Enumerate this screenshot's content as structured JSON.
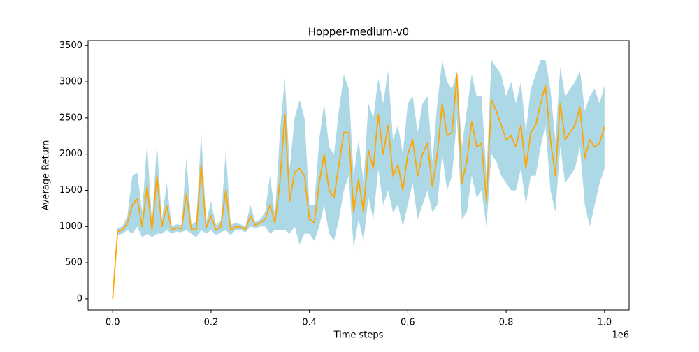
{
  "chart_data": {
    "type": "line",
    "title": "Hopper-medium-v0",
    "xlabel": "Time steps",
    "ylabel": "Average Return",
    "x_offset_text": "1e6",
    "xlim": [
      -50000,
      1050000
    ],
    "ylim": [
      -155,
      3570
    ],
    "xticks": [
      {
        "value": 0,
        "label": "0.0"
      },
      {
        "value": 200000,
        "label": "0.2"
      },
      {
        "value": 400000,
        "label": "0.4"
      },
      {
        "value": 600000,
        "label": "0.6"
      },
      {
        "value": 800000,
        "label": "0.8"
      },
      {
        "value": 1000000,
        "label": "1.0"
      }
    ],
    "yticks": [
      0,
      500,
      1000,
      1500,
      2000,
      2500,
      3000,
      3500
    ],
    "x": [
      0,
      10000,
      20000,
      30000,
      40000,
      50000,
      60000,
      70000,
      80000,
      90000,
      100000,
      110000,
      120000,
      130000,
      140000,
      150000,
      160000,
      170000,
      180000,
      190000,
      200000,
      210000,
      220000,
      230000,
      240000,
      250000,
      260000,
      270000,
      280000,
      290000,
      300000,
      310000,
      320000,
      330000,
      340000,
      350000,
      360000,
      370000,
      380000,
      390000,
      400000,
      410000,
      420000,
      430000,
      440000,
      450000,
      460000,
      470000,
      480000,
      490000,
      500000,
      510000,
      520000,
      530000,
      540000,
      550000,
      560000,
      570000,
      580000,
      590000,
      600000,
      610000,
      620000,
      630000,
      640000,
      650000,
      660000,
      670000,
      680000,
      690000,
      700000,
      710000,
      720000,
      730000,
      740000,
      750000,
      760000,
      770000,
      780000,
      790000,
      800000,
      810000,
      820000,
      830000,
      840000,
      850000,
      860000,
      870000,
      880000,
      890000,
      900000,
      910000,
      920000,
      930000,
      940000,
      950000,
      960000,
      970000,
      980000,
      990000,
      1000000
    ],
    "series": [
      {
        "color": "#ffa500",
        "band_color": "#add8e6",
        "values": [
          0,
          930,
          950,
          1050,
          1300,
          1380,
          1000,
          1550,
          950,
          1700,
          1000,
          1280,
          950,
          980,
          970,
          1450,
          960,
          960,
          1850,
          980,
          1150,
          950,
          1000,
          1500,
          950,
          1000,
          990,
          960,
          1150,
          1020,
          1050,
          1100,
          1300,
          1050,
          1600,
          2550,
          1350,
          1750,
          1800,
          1700,
          1100,
          1050,
          1600,
          2000,
          1500,
          1400,
          1850,
          2300,
          2300,
          1200,
          1650,
          1200,
          2050,
          1800,
          2550,
          2000,
          2400,
          1700,
          1850,
          1500,
          2000,
          2200,
          1700,
          2000,
          2150,
          1550,
          2000,
          2700,
          2250,
          2300,
          3100,
          1600,
          1900,
          2450,
          2100,
          2150,
          1350,
          2750,
          2600,
          2400,
          2200,
          2250,
          2100,
          2400,
          1800,
          2300,
          2400,
          2700,
          2950,
          2200,
          1700,
          2700,
          2200,
          2300,
          2400,
          2650,
          1950,
          2200,
          2100,
          2150,
          2380
        ],
        "band_lower": [
          0,
          880,
          900,
          950,
          900,
          1000,
          850,
          900,
          850,
          900,
          900,
          950,
          900,
          930,
          920,
          950,
          900,
          850,
          950,
          900,
          950,
          880,
          920,
          950,
          880,
          950,
          950,
          920,
          1000,
          980,
          1000,
          1000,
          900,
          950,
          950,
          950,
          900,
          1000,
          750,
          900,
          900,
          800,
          1000,
          1300,
          900,
          800,
          1100,
          1500,
          1700,
          700,
          1100,
          800,
          1400,
          1100,
          1800,
          1300,
          1500,
          1200,
          1300,
          1000,
          1300,
          1600,
          1100,
          1300,
          1500,
          1200,
          1300,
          2000,
          1500,
          1700,
          2500,
          1100,
          1200,
          1700,
          1400,
          1500,
          1000,
          2000,
          1900,
          1700,
          1600,
          1500,
          1500,
          1800,
          1300,
          1700,
          1700,
          2100,
          2400,
          1500,
          1200,
          2100,
          1600,
          1700,
          1800,
          2100,
          1300,
          1000,
          1300,
          1600,
          1800
        ],
        "band_upper": [
          0,
          980,
          1000,
          1150,
          1700,
          1750,
          1200,
          2150,
          1050,
          2150,
          1100,
          1600,
          1000,
          1030,
          1020,
          1950,
          1020,
          1070,
          2300,
          1060,
          1350,
          1020,
          1080,
          2050,
          1020,
          1050,
          1030,
          1000,
          1300,
          1060,
          1100,
          1200,
          1700,
          1150,
          2300,
          3050,
          1800,
          2500,
          2750,
          2500,
          1300,
          1300,
          2200,
          2700,
          2100,
          2000,
          2600,
          3100,
          2900,
          1700,
          2200,
          1600,
          2700,
          2500,
          3050,
          2700,
          3150,
          2200,
          2400,
          2000,
          2700,
          2800,
          2300,
          2700,
          2800,
          1900,
          2700,
          3300,
          3000,
          2900,
          3150,
          2100,
          2600,
          3100,
          2800,
          2800,
          1700,
          3300,
          3200,
          3100,
          2800,
          3000,
          2700,
          3000,
          2300,
          2900,
          3100,
          3300,
          3300,
          2900,
          2200,
          3200,
          2800,
          2900,
          3000,
          3150,
          2600,
          2800,
          2900,
          2700,
          2950
        ]
      }
    ]
  }
}
